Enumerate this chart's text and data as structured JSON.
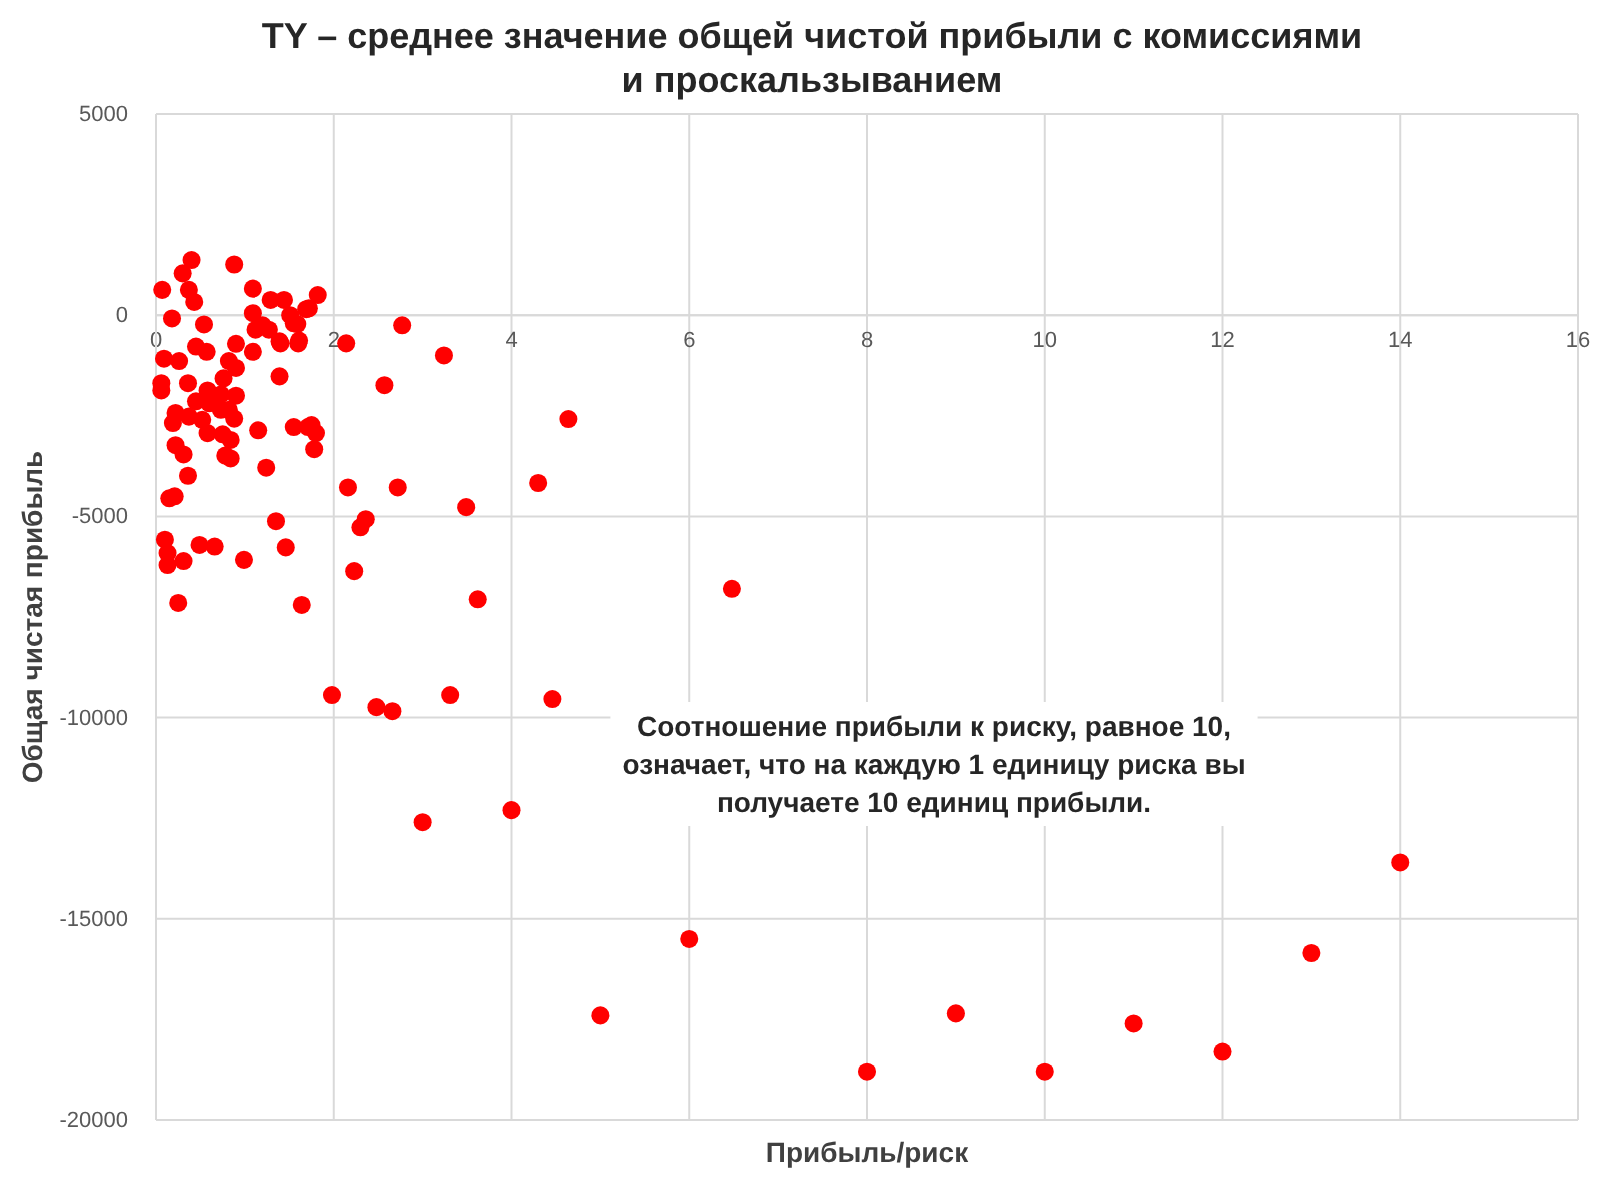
{
  "chart_data": {
    "type": "scatter",
    "title": "TY – среднее значение общей чистой прибыли с комиссиями и проскальзыванием",
    "xlabel": "Прибыль/риск",
    "ylabel": "Общая чистая прибыль",
    "annotations": [
      "Соотношение прибыли к риску, равное 10, означает, что на каждую 1 единицу риска вы получаете 10 единиц прибыли."
    ],
    "xlim": [
      0,
      16
    ],
    "xticks": [
      0,
      2,
      4,
      6,
      8,
      10,
      12,
      14,
      16
    ],
    "ylim": [
      -20000,
      5000
    ],
    "yticks": [
      -20000,
      -15000,
      -10000,
      -5000,
      0,
      5000
    ],
    "grid": true,
    "marker": "circle",
    "series": [
      {
        "color": "#ff0000",
        "x": [
          3,
          4,
          5,
          6,
          8,
          9,
          10,
          11,
          12,
          13,
          14,
          6.48,
          4.64,
          4.3,
          1.82,
          1.69,
          1.51,
          1.55,
          2.77,
          1.4,
          1.6,
          2.14,
          3.24,
          2.57,
          1.55,
          1.71,
          1.8,
          1.78,
          2.16,
          2.72,
          3.49,
          2.36,
          2.3,
          1.46,
          2.23,
          1.64,
          3.62,
          1.98,
          3.31,
          2.48,
          2.66,
          4.46,
          0.4,
          0.88,
          0.3,
          0.07,
          0.37,
          0.43,
          1.09,
          1.29,
          1.44,
          1.72,
          0.18,
          0.54,
          1.09,
          1.2,
          1.12,
          1.27,
          1.59,
          1.39,
          1.61,
          0.9,
          1.09,
          0.45,
          0.57,
          0.09,
          0.26,
          0.82,
          0.9,
          0.76,
          1.39,
          0.06,
          0.36,
          0.06,
          0.58,
          0.73,
          0.9,
          0.45,
          0.6,
          0.73,
          0.82,
          0.22,
          0.37,
          0.52,
          0.88,
          0.19,
          1.75,
          0.58,
          0.75,
          1.15,
          0.22,
          0.84,
          0.31,
          0.78,
          0.84,
          1.24,
          0.36,
          0.15,
          0.21,
          1.35,
          0.1,
          0.13,
          0.31,
          0.49,
          0.66,
          0.99,
          0.13,
          0.25
        ],
        "values": [
          -12600,
          -12300,
          -17400,
          -15500,
          -18800,
          -17350,
          -18800,
          -17600,
          -18300,
          -15850,
          -13600,
          -6800,
          -2580,
          -4170,
          500,
          150,
          0,
          -200,
          -250,
          -700,
          -700,
          -700,
          -1000,
          -1740,
          -2780,
          -2780,
          -2930,
          -3330,
          -4280,
          -4280,
          -4770,
          -5070,
          -5270,
          -5770,
          -6360,
          -7200,
          -7060,
          -9440,
          -9440,
          -9740,
          -9840,
          -9540,
          1370,
          1260,
          1040,
          630,
          630,
          330,
          660,
          380,
          380,
          170,
          -80,
          -230,
          50,
          -250,
          -360,
          -360,
          -220,
          -650,
          -630,
          -710,
          -910,
          -780,
          -910,
          -1080,
          -1140,
          -1140,
          -1310,
          -1570,
          -1520,
          -1690,
          -1690,
          -1870,
          -1870,
          -1970,
          -2000,
          -2140,
          -2190,
          -2350,
          -2350,
          -2430,
          -2520,
          -2600,
          -2570,
          -2680,
          -2730,
          -2930,
          -2960,
          -2860,
          -3230,
          -3100,
          -3460,
          -3490,
          -3560,
          -3790,
          -3990,
          -4550,
          -4500,
          -5120,
          -5580,
          -5910,
          -6110,
          -5710,
          -5750,
          -6080,
          -6210,
          -7150
        ]
      }
    ]
  }
}
